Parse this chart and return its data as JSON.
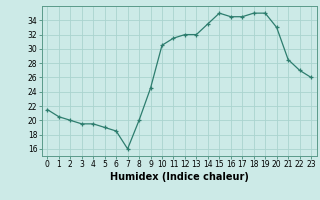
{
  "x": [
    0,
    1,
    2,
    3,
    4,
    5,
    6,
    7,
    8,
    9,
    10,
    11,
    12,
    13,
    14,
    15,
    16,
    17,
    18,
    19,
    20,
    21,
    22,
    23
  ],
  "y": [
    21.5,
    20.5,
    20.0,
    19.5,
    19.5,
    19.0,
    18.5,
    16.0,
    20.0,
    24.5,
    30.5,
    31.5,
    32.0,
    32.0,
    33.5,
    35.0,
    34.5,
    34.5,
    35.0,
    35.0,
    33.0,
    28.5,
    27.0,
    26.0
  ],
  "line_color": "#2d7d6e",
  "marker": "+",
  "background_color": "#cceae7",
  "grid_color": "#aad4cf",
  "xlabel": "Humidex (Indice chaleur)",
  "xlim": [
    -0.5,
    23.5
  ],
  "ylim": [
    15,
    36
  ],
  "yticks": [
    16,
    18,
    20,
    22,
    24,
    26,
    28,
    30,
    32,
    34
  ],
  "xticks": [
    0,
    1,
    2,
    3,
    4,
    5,
    6,
    7,
    8,
    9,
    10,
    11,
    12,
    13,
    14,
    15,
    16,
    17,
    18,
    19,
    20,
    21,
    22,
    23
  ],
  "tick_fontsize": 5.5,
  "label_fontsize": 7.0
}
